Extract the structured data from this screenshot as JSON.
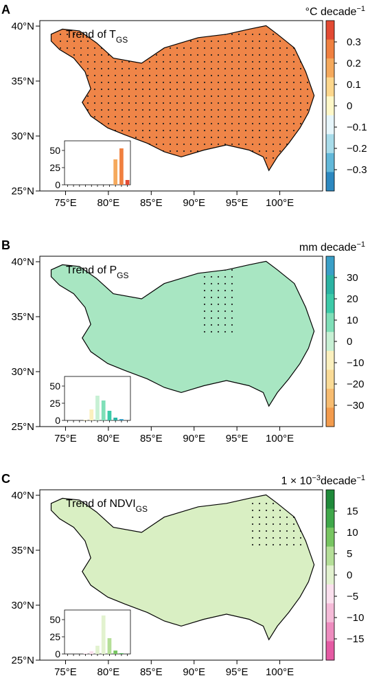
{
  "figure": {
    "panels": [
      {
        "letter": "A",
        "title_main": "Trend of T",
        "title_sub": "GS",
        "unit": "°C decade",
        "unit_sup": "−1",
        "colorbar_ticks": [
          "0.3",
          "0.2",
          "0.1",
          "0",
          "−0.1",
          "−0.2",
          "−0.3"
        ],
        "colorbar_colors": [
          "#e34a33",
          "#f08040",
          "#f5a95c",
          "#fdd78c",
          "#fff8c8",
          "#e7f6fb",
          "#a8dcea",
          "#62b8d9",
          "#2c88c0"
        ],
        "fill_color": "#ef8548"
      },
      {
        "letter": "B",
        "title_main": "Trend of P",
        "title_sub": "GS",
        "unit": "mm decade",
        "unit_sup": "−1",
        "colorbar_ticks": [
          "30",
          "20",
          "10",
          "0",
          "−10",
          "−20",
          "−30"
        ],
        "colorbar_colors": [
          "#3a9fc7",
          "#2bb3a3",
          "#3ccaa8",
          "#7fdfb8",
          "#c7f0d4",
          "#fbf0be",
          "#fadb96",
          "#f7bc70",
          "#f39b4d"
        ],
        "fill_color": "#a8e6c2"
      },
      {
        "letter": "C",
        "title_main": "Trend of NDVI",
        "title_sub": "GS",
        "unit": "1 × 10",
        "unit_exp": "−3",
        "unit_rest": "decade",
        "unit_sup": "−1",
        "colorbar_ticks": [
          "15",
          "10",
          "5",
          "0",
          "−5",
          "−10",
          "−15"
        ],
        "colorbar_colors": [
          "#1f8a3a",
          "#3fa84a",
          "#77c561",
          "#b5df98",
          "#e2f2cf",
          "#fbe0ee",
          "#f5bbd8",
          "#ee8cbf",
          "#e55aa3"
        ],
        "fill_color": "#d9efc3"
      }
    ],
    "x_tick_labels": [
      "75°E",
      "80°E",
      "85°E",
      "90°E",
      "95°E",
      "100°E"
    ],
    "y_tick_labels": [
      "40°N",
      "35°N",
      "30°N",
      "25°N"
    ],
    "hist_ticks": [
      "50",
      "25",
      "0"
    ]
  },
  "chart_data": [
    {
      "type": "heatmap",
      "title": "Trend of TGS",
      "xlabel": "",
      "ylabel": "",
      "xlim": [
        72,
        105
      ],
      "ylim": [
        25,
        40.5
      ],
      "x_ticks": [
        75,
        80,
        85,
        90,
        95,
        100
      ],
      "y_ticks": [
        25,
        30,
        35,
        40
      ],
      "colorbar_range": [
        -0.35,
        0.35
      ],
      "units": "°C decade−1",
      "inset_histogram": {
        "ylim": [
          0,
          60
        ],
        "values": [
          0,
          0,
          0,
          0,
          0,
          0,
          0,
          0,
          37,
          53,
          7
        ],
        "colors": [
          "#2c88c0",
          "#62b8d9",
          "#a8dcea",
          "#e7f6fb",
          "#fff8c8",
          "#fff8c8",
          "#fdd78c",
          "#fdd78c",
          "#f5a95c",
          "#f08040",
          "#e34a33"
        ]
      }
    },
    {
      "type": "heatmap",
      "title": "Trend of PGS",
      "xlabel": "",
      "ylabel": "",
      "xlim": [
        72,
        105
      ],
      "ylim": [
        25,
        40.5
      ],
      "x_ticks": [
        75,
        80,
        85,
        90,
        95,
        100
      ],
      "y_ticks": [
        25,
        30,
        35,
        40
      ],
      "colorbar_range": [
        -38,
        38
      ],
      "units": "mm decade−1",
      "inset_histogram": {
        "ylim": [
          0,
          60
        ],
        "values": [
          0,
          0,
          0,
          1,
          16,
          36,
          29,
          14,
          4,
          2,
          0
        ],
        "colors": [
          "#f39b4d",
          "#f7bc70",
          "#fadb96",
          "#fbf0be",
          "#fbf0be",
          "#c7f0d4",
          "#7fdfb8",
          "#3ccaa8",
          "#2bb3a3",
          "#3a9fc7",
          "#3a9fc7"
        ]
      }
    },
    {
      "type": "heatmap",
      "title": "Trend of NDVIGS",
      "xlabel": "",
      "ylabel": "",
      "xlim": [
        72,
        105
      ],
      "ylim": [
        25,
        40.5
      ],
      "x_ticks": [
        75,
        80,
        85,
        90,
        95,
        100
      ],
      "y_ticks": [
        25,
        30,
        35,
        40
      ],
      "colorbar_range": [
        -19,
        19
      ],
      "units": "1 × 10−3 decade−1",
      "inset_histogram": {
        "ylim": [
          0,
          60
        ],
        "values": [
          0,
          0,
          0,
          1,
          4,
          12,
          56,
          23,
          5,
          1,
          0
        ],
        "colors": [
          "#e55aa3",
          "#ee8cbf",
          "#f5bbd8",
          "#fbe0ee",
          "#fbe0ee",
          "#e2f2cf",
          "#e2f2cf",
          "#b5df98",
          "#77c561",
          "#3fa84a",
          "#1f8a3a"
        ]
      }
    }
  ]
}
